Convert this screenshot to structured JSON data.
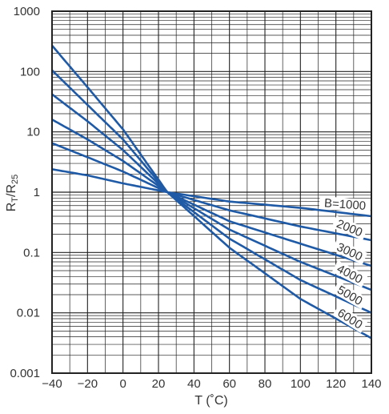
{
  "chart_data": {
    "type": "line",
    "title": "",
    "xlabel": "T (˚C)",
    "ylabel": "RT/R25",
    "ylabel_parts": {
      "r1": "R",
      "sub1": "T",
      "slash": "/R",
      "sub2": "25"
    },
    "xlim": [
      -40,
      140
    ],
    "ylim": [
      0.001,
      1000
    ],
    "yscale": "log",
    "grid": true,
    "x_ticks": [
      -40,
      -20,
      0,
      20,
      40,
      60,
      80,
      100,
      120,
      140
    ],
    "x_tick_labels": [
      "−40",
      "−20",
      "0",
      "20",
      "40",
      "60",
      "80",
      "100",
      "120",
      "140"
    ],
    "y_ticks": [
      0.001,
      0.01,
      0.1,
      1,
      10,
      100,
      1000
    ],
    "y_tick_labels": [
      "0.001",
      "0.01",
      "0.1",
      "1",
      "10",
      "100",
      "1000"
    ],
    "line_color": "#1f5aa6",
    "series": [
      {
        "name": "B=1000",
        "B": 1000,
        "x": [
          -40,
          -20,
          0,
          25,
          60,
          100,
          140
        ],
        "values": [
          2.4,
          1.9,
          1.4,
          1.0,
          0.7,
          0.55,
          0.4
        ]
      },
      {
        "name": "2000",
        "B": 2000,
        "x": [
          -40,
          -20,
          0,
          25,
          60,
          100,
          140
        ],
        "values": [
          6.5,
          3.8,
          2.2,
          1.0,
          0.5,
          0.27,
          0.16
        ]
      },
      {
        "name": "3000",
        "B": 3000,
        "x": [
          -40,
          -20,
          0,
          25,
          60,
          100,
          140
        ],
        "values": [
          16,
          7.5,
          3.3,
          1.0,
          0.33,
          0.14,
          0.06
        ]
      },
      {
        "name": "4000",
        "B": 4000,
        "x": [
          -40,
          -20,
          0,
          25,
          60,
          100,
          140
        ],
        "values": [
          42,
          15,
          5,
          1.0,
          0.24,
          0.07,
          0.024
        ]
      },
      {
        "name": "5000",
        "B": 5000,
        "x": [
          -40,
          -20,
          0,
          25,
          60,
          100,
          140
        ],
        "values": [
          105,
          28,
          7.5,
          1.0,
          0.17,
          0.035,
          0.01
        ]
      },
      {
        "name": "6000",
        "B": 6000,
        "x": [
          -40,
          -20,
          0,
          25,
          60,
          100,
          140
        ],
        "values": [
          270,
          55,
          11,
          1.0,
          0.12,
          0.017,
          0.0038
        ]
      }
    ]
  }
}
